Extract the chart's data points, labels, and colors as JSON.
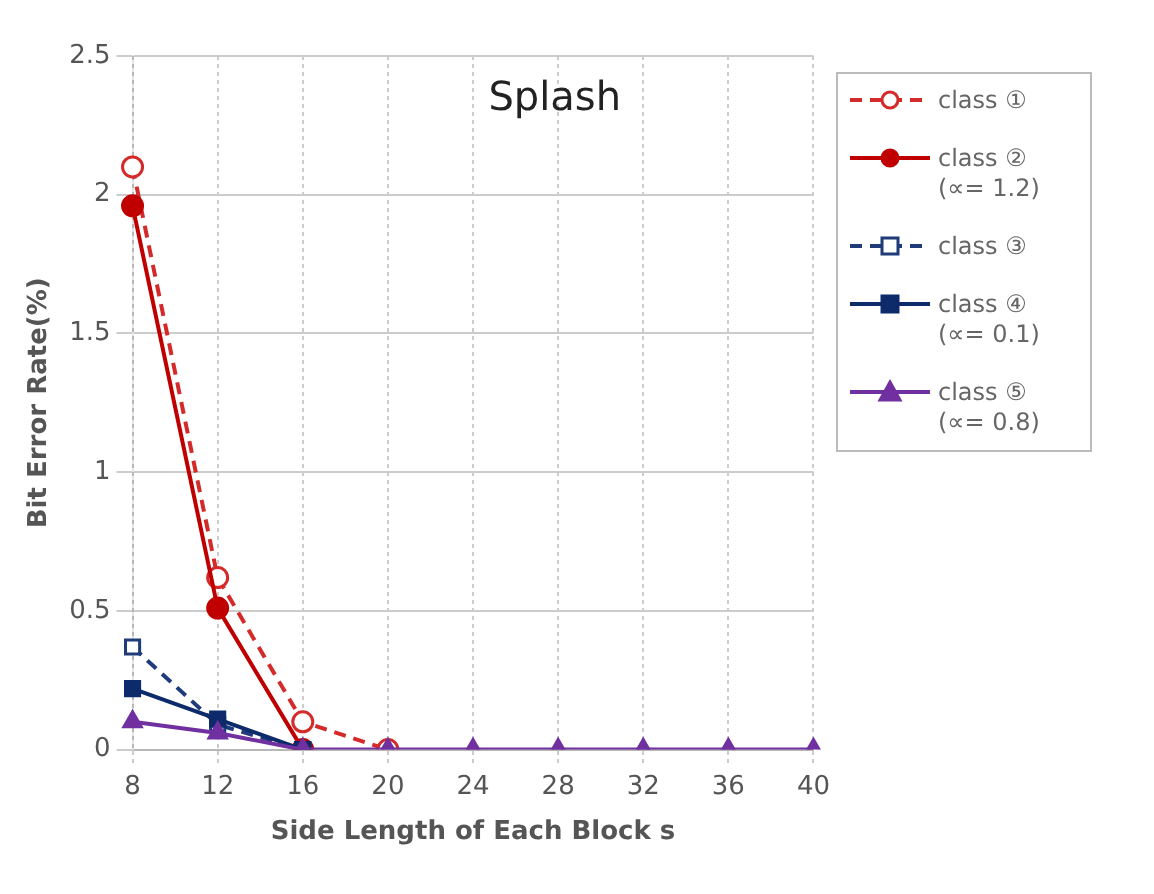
{
  "chart_data": {
    "type": "line",
    "title": "Splash",
    "xlabel": "Side Length of Each Block s",
    "ylabel": "Bit Error Rate(%)",
    "categories": [
      "8",
      "12",
      "16",
      "20",
      "24",
      "28",
      "32",
      "36",
      "40"
    ],
    "series": [
      {
        "name": "class ① ",
        "color": "#d42a2a",
        "marker": "circle",
        "line_style": "dashed",
        "values": [
          2.1,
          0.62,
          0.1,
          0,
          null,
          null,
          null,
          null,
          null
        ]
      },
      {
        "name": "class ② (∝= 1.2)",
        "color": "#c00000",
        "marker": "circle",
        "line_style": "solid",
        "values": [
          1.96,
          0.51,
          0,
          null,
          null,
          null,
          null,
          null,
          null
        ]
      },
      {
        "name": "class ③ ",
        "color": "#1f3b7a",
        "marker": "square",
        "line_style": "dashed",
        "values": [
          0.37,
          0.09,
          0,
          null,
          null,
          null,
          null,
          null,
          null
        ]
      },
      {
        "name": "class ④ (∝= 0.1)",
        "color": "#0d2a6b",
        "marker": "square",
        "line_style": "solid",
        "values": [
          0.22,
          0.11,
          0,
          null,
          null,
          null,
          null,
          null,
          null
        ]
      },
      {
        "name": "class ⑤ (∝= 0.8)",
        "color": "#7030a0",
        "marker": "triangle",
        "line_style": "solid",
        "values": [
          0.1,
          0.06,
          0,
          0,
          0,
          0,
          0,
          0,
          0
        ]
      }
    ],
    "ylim": [
      0,
      2.5
    ],
    "yticks": [
      0,
      0.5,
      1,
      1.5,
      2,
      2.5
    ],
    "grid": true,
    "legend": "right"
  }
}
